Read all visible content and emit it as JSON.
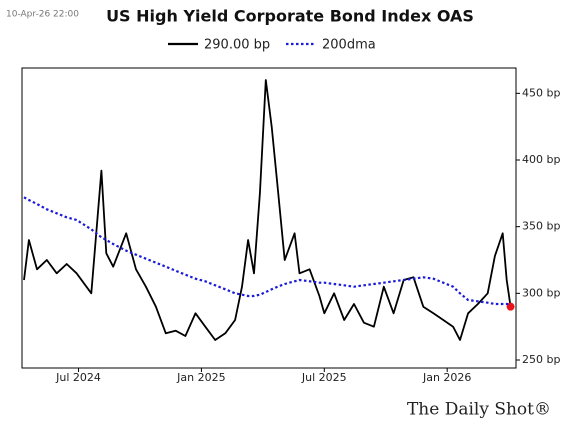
{
  "chart_data": {
    "type": "line",
    "title": "US High Yield Corporate Bond Index OAS",
    "timestamp": "10-Apr-26 22:00",
    "source": "The Daily Shot®",
    "x": [
      2024.278,
      2024.298,
      2024.331,
      2024.371,
      2024.411,
      2024.452,
      2024.492,
      2024.552,
      2024.593,
      2024.613,
      2024.641,
      2024.694,
      2024.734,
      2024.774,
      2024.815,
      2024.855,
      2024.895,
      2024.935,
      2024.976,
      2025.016,
      2025.056,
      2025.097,
      2025.137,
      2025.165,
      2025.19,
      2025.214,
      2025.238,
      2025.262,
      2025.286,
      2025.31,
      2025.339,
      2025.379,
      2025.399,
      2025.44,
      2025.48,
      2025.5,
      2025.54,
      2025.581,
      2025.621,
      2025.661,
      2025.702,
      2025.742,
      2025.782,
      2025.823,
      2025.863,
      2025.903,
      2025.944,
      2025.984,
      2026.024,
      2026.052,
      2026.085,
      2026.125,
      2026.165,
      2026.194,
      2026.226,
      2026.242,
      2026.258
    ],
    "series": [
      {
        "name": "290.00 bp",
        "color": "#000000",
        "line_style": "solid",
        "end_marker_color": "#e8141b",
        "values": [
          310,
          340,
          318,
          325,
          315,
          322,
          315,
          300,
          392,
          330,
          320,
          345,
          318,
          305,
          290,
          270,
          272,
          268,
          285,
          275,
          265,
          270,
          280,
          305,
          340,
          315,
          375,
          460,
          425,
          380,
          325,
          345,
          315,
          318,
          298,
          285,
          300,
          280,
          292,
          278,
          275,
          305,
          285,
          310,
          312,
          290,
          285,
          280,
          275,
          265,
          285,
          292,
          300,
          328,
          345,
          310,
          290
        ]
      },
      {
        "name": "200dma",
        "color": "#1a1adb",
        "line_style": "dotted",
        "values": [
          372,
          370,
          367,
          363,
          360,
          357,
          355,
          348,
          342,
          340,
          337,
          332,
          329,
          326,
          323,
          320,
          317,
          314,
          311,
          309,
          306,
          303,
          300,
          299,
          298,
          298,
          299,
          301,
          303,
          305,
          307,
          309,
          310,
          309,
          308,
          308,
          307,
          306,
          305,
          306,
          307,
          308,
          309,
          310,
          311,
          312,
          311,
          308,
          305,
          300,
          295,
          294,
          293,
          292,
          292,
          292,
          292
        ]
      }
    ],
    "xlim": [
      2024.27,
      2026.28
    ],
    "xticks": [
      {
        "value": 2024.5,
        "label": "Jul 2024"
      },
      {
        "value": 2025.0,
        "label": "Jan 2025"
      },
      {
        "value": 2025.5,
        "label": "Jul 2025"
      },
      {
        "value": 2026.0,
        "label": "Jan 2026"
      }
    ],
    "ylim": [
      244,
      469
    ],
    "yticks": [
      {
        "value": 250,
        "label": "250 bp"
      },
      {
        "value": 300,
        "label": "300 bp"
      },
      {
        "value": 350,
        "label": "350 bp"
      },
      {
        "value": 400,
        "label": "400 bp"
      },
      {
        "value": 450,
        "label": "450 bp"
      }
    ],
    "grid": false
  }
}
